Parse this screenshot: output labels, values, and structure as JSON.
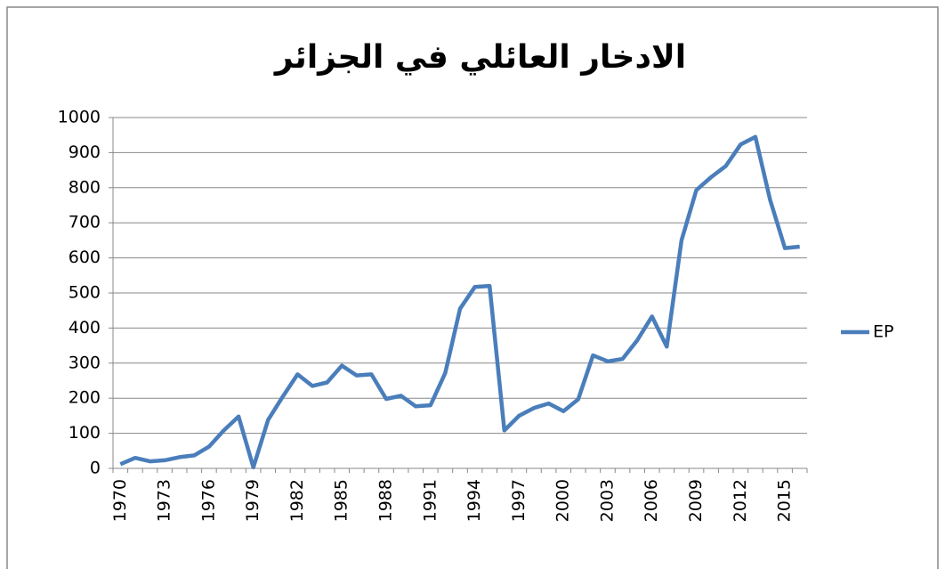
{
  "chart_data": {
    "type": "line",
    "title": "الادخار العائلي في الجزائر",
    "categories": [
      "1970",
      null,
      null,
      "1973",
      null,
      null,
      "1976",
      null,
      null,
      "1979",
      null,
      null,
      "1982",
      null,
      null,
      "1985",
      null,
      null,
      "1988",
      null,
      null,
      "1991",
      null,
      null,
      "1994",
      null,
      null,
      "1997",
      null,
      null,
      "2000",
      null,
      null,
      "2003",
      null,
      null,
      "2006",
      null,
      null,
      "2009",
      null,
      null,
      "2012",
      null,
      null,
      "2015",
      null
    ],
    "series": [
      {
        "name": "EP",
        "color": "#4a7ebb",
        "values": [
          12,
          30,
          20,
          23,
          32,
          37,
          62,
          108,
          148,
          3,
          138,
          205,
          268,
          235,
          245,
          293,
          265,
          268,
          198,
          207,
          177,
          180,
          272,
          455,
          517,
          520,
          108,
          150,
          172,
          185,
          163,
          197,
          322,
          305,
          312,
          365,
          433,
          347,
          650,
          793,
          830,
          862,
          923,
          945,
          765,
          628,
          632
        ]
      }
    ],
    "ylim": [
      0,
      1000
    ],
    "yticks": [
      0,
      100,
      200,
      300,
      400,
      500,
      600,
      700,
      800,
      900,
      1000
    ],
    "grid": true,
    "legend": "right"
  }
}
